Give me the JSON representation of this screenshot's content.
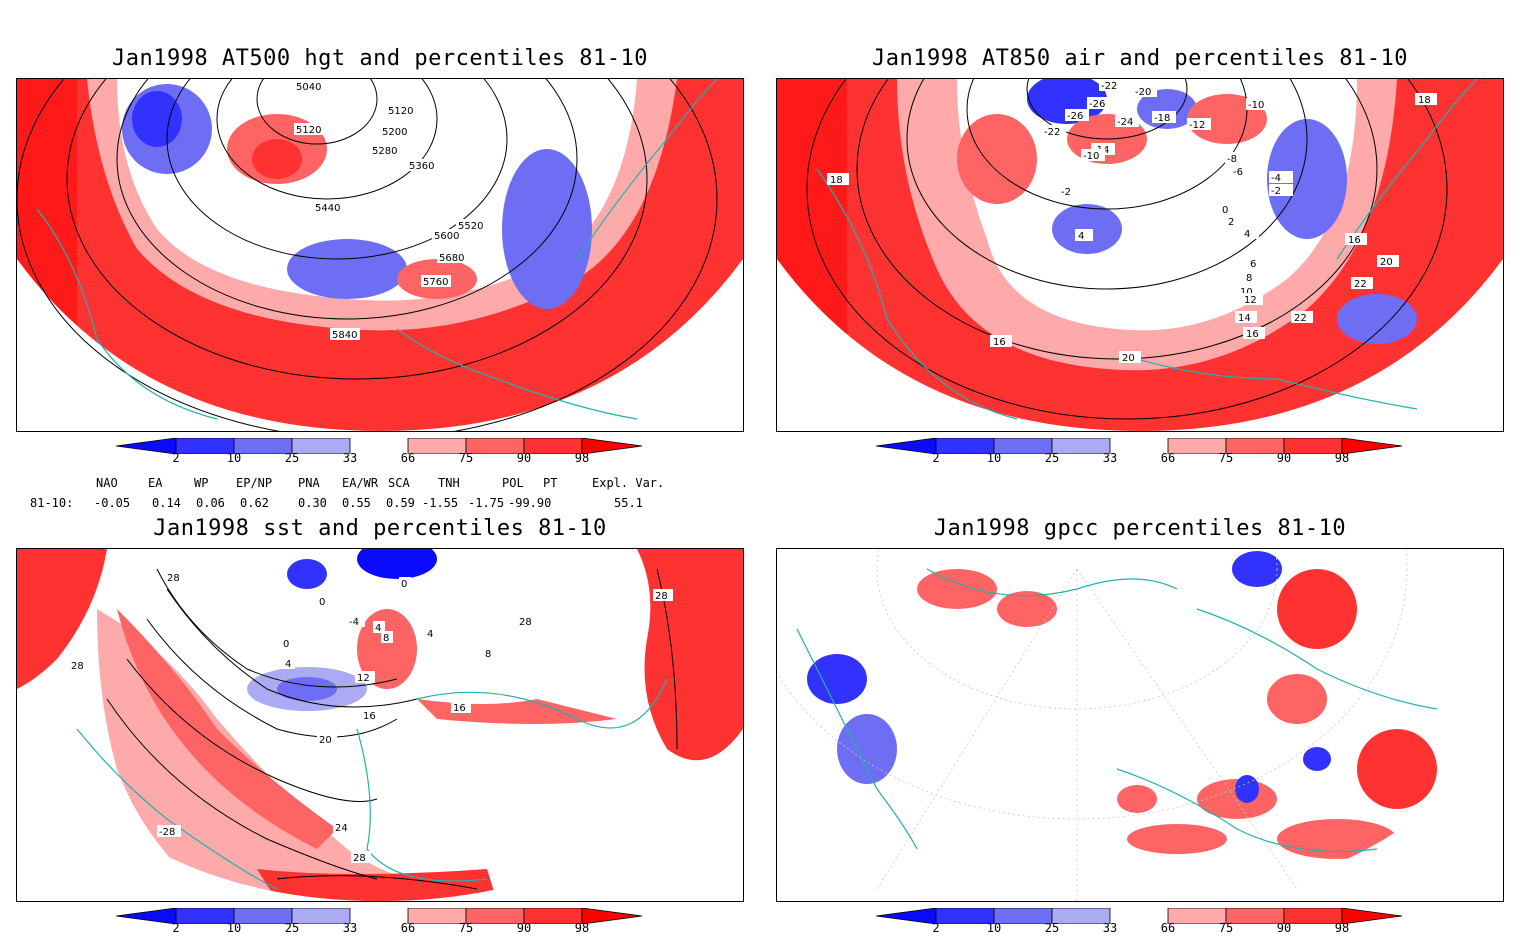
{
  "panels": [
    {
      "id": "hgt500",
      "title": "Jan1998 AT500 hgt and percentiles 81-10",
      "contour_labels": [
        "5040",
        "5120",
        "5120",
        "5200",
        "5280",
        "5360",
        "5440",
        "5520",
        "5600",
        "5680",
        "5760",
        "5840"
      ]
    },
    {
      "id": "air850",
      "title": "Jan1998 AT850 air and percentiles 81-10",
      "contour_labels": [
        "-22",
        "-20",
        "-26",
        "-26",
        "-24",
        "-18",
        "-10",
        "-12",
        "-22",
        "-14",
        "-10",
        "-8",
        "-6",
        "-4",
        "-2",
        "-2",
        "0",
        "2",
        "4",
        "4",
        "6",
        "8",
        "10",
        "12",
        "14",
        "16",
        "16",
        "16",
        "18",
        "18",
        "20",
        "20",
        "22",
        "22"
      ]
    },
    {
      "id": "sst",
      "title": "Jan1998 sst and percentiles 81-10",
      "contour_labels": [
        "28",
        "0",
        "0",
        "-4",
        "4",
        "8",
        "4",
        "0",
        "4",
        "8",
        "12",
        "16",
        "16",
        "20",
        "24",
        "28",
        "28",
        "28",
        "-28",
        "28"
      ]
    },
    {
      "id": "gpcc",
      "title": "Jan1998 gpcc percentiles 81-10",
      "contour_labels": []
    }
  ],
  "colorbar": {
    "labels": [
      "2",
      "10",
      "25",
      "33",
      "66",
      "75",
      "90",
      "98"
    ],
    "colors": {
      "below2": "#0a0aff",
      "2_10": "#3232ff",
      "10_25": "#6e6ef5",
      "25_33": "#aaaaf5",
      "33_66": "#ffffff",
      "66_75": "#ffaaaa",
      "75_90": "#ff6464",
      "90_98": "#ff3232",
      "above98": "#ff0000"
    }
  },
  "teleconnections": {
    "row_label": "81-10:",
    "headers": [
      "NAO",
      "EA",
      "WP",
      "EP/NP",
      "PNA",
      "EA/WR",
      "SCA",
      "TNH",
      "POL",
      "PT",
      "Expl. Var."
    ],
    "values": [
      "-0.05",
      "0.14",
      "0.06",
      "0.62",
      "0.30",
      "0.55",
      "0.59",
      "-1.55",
      "-1.75",
      "-99.90",
      "55.1"
    ]
  }
}
